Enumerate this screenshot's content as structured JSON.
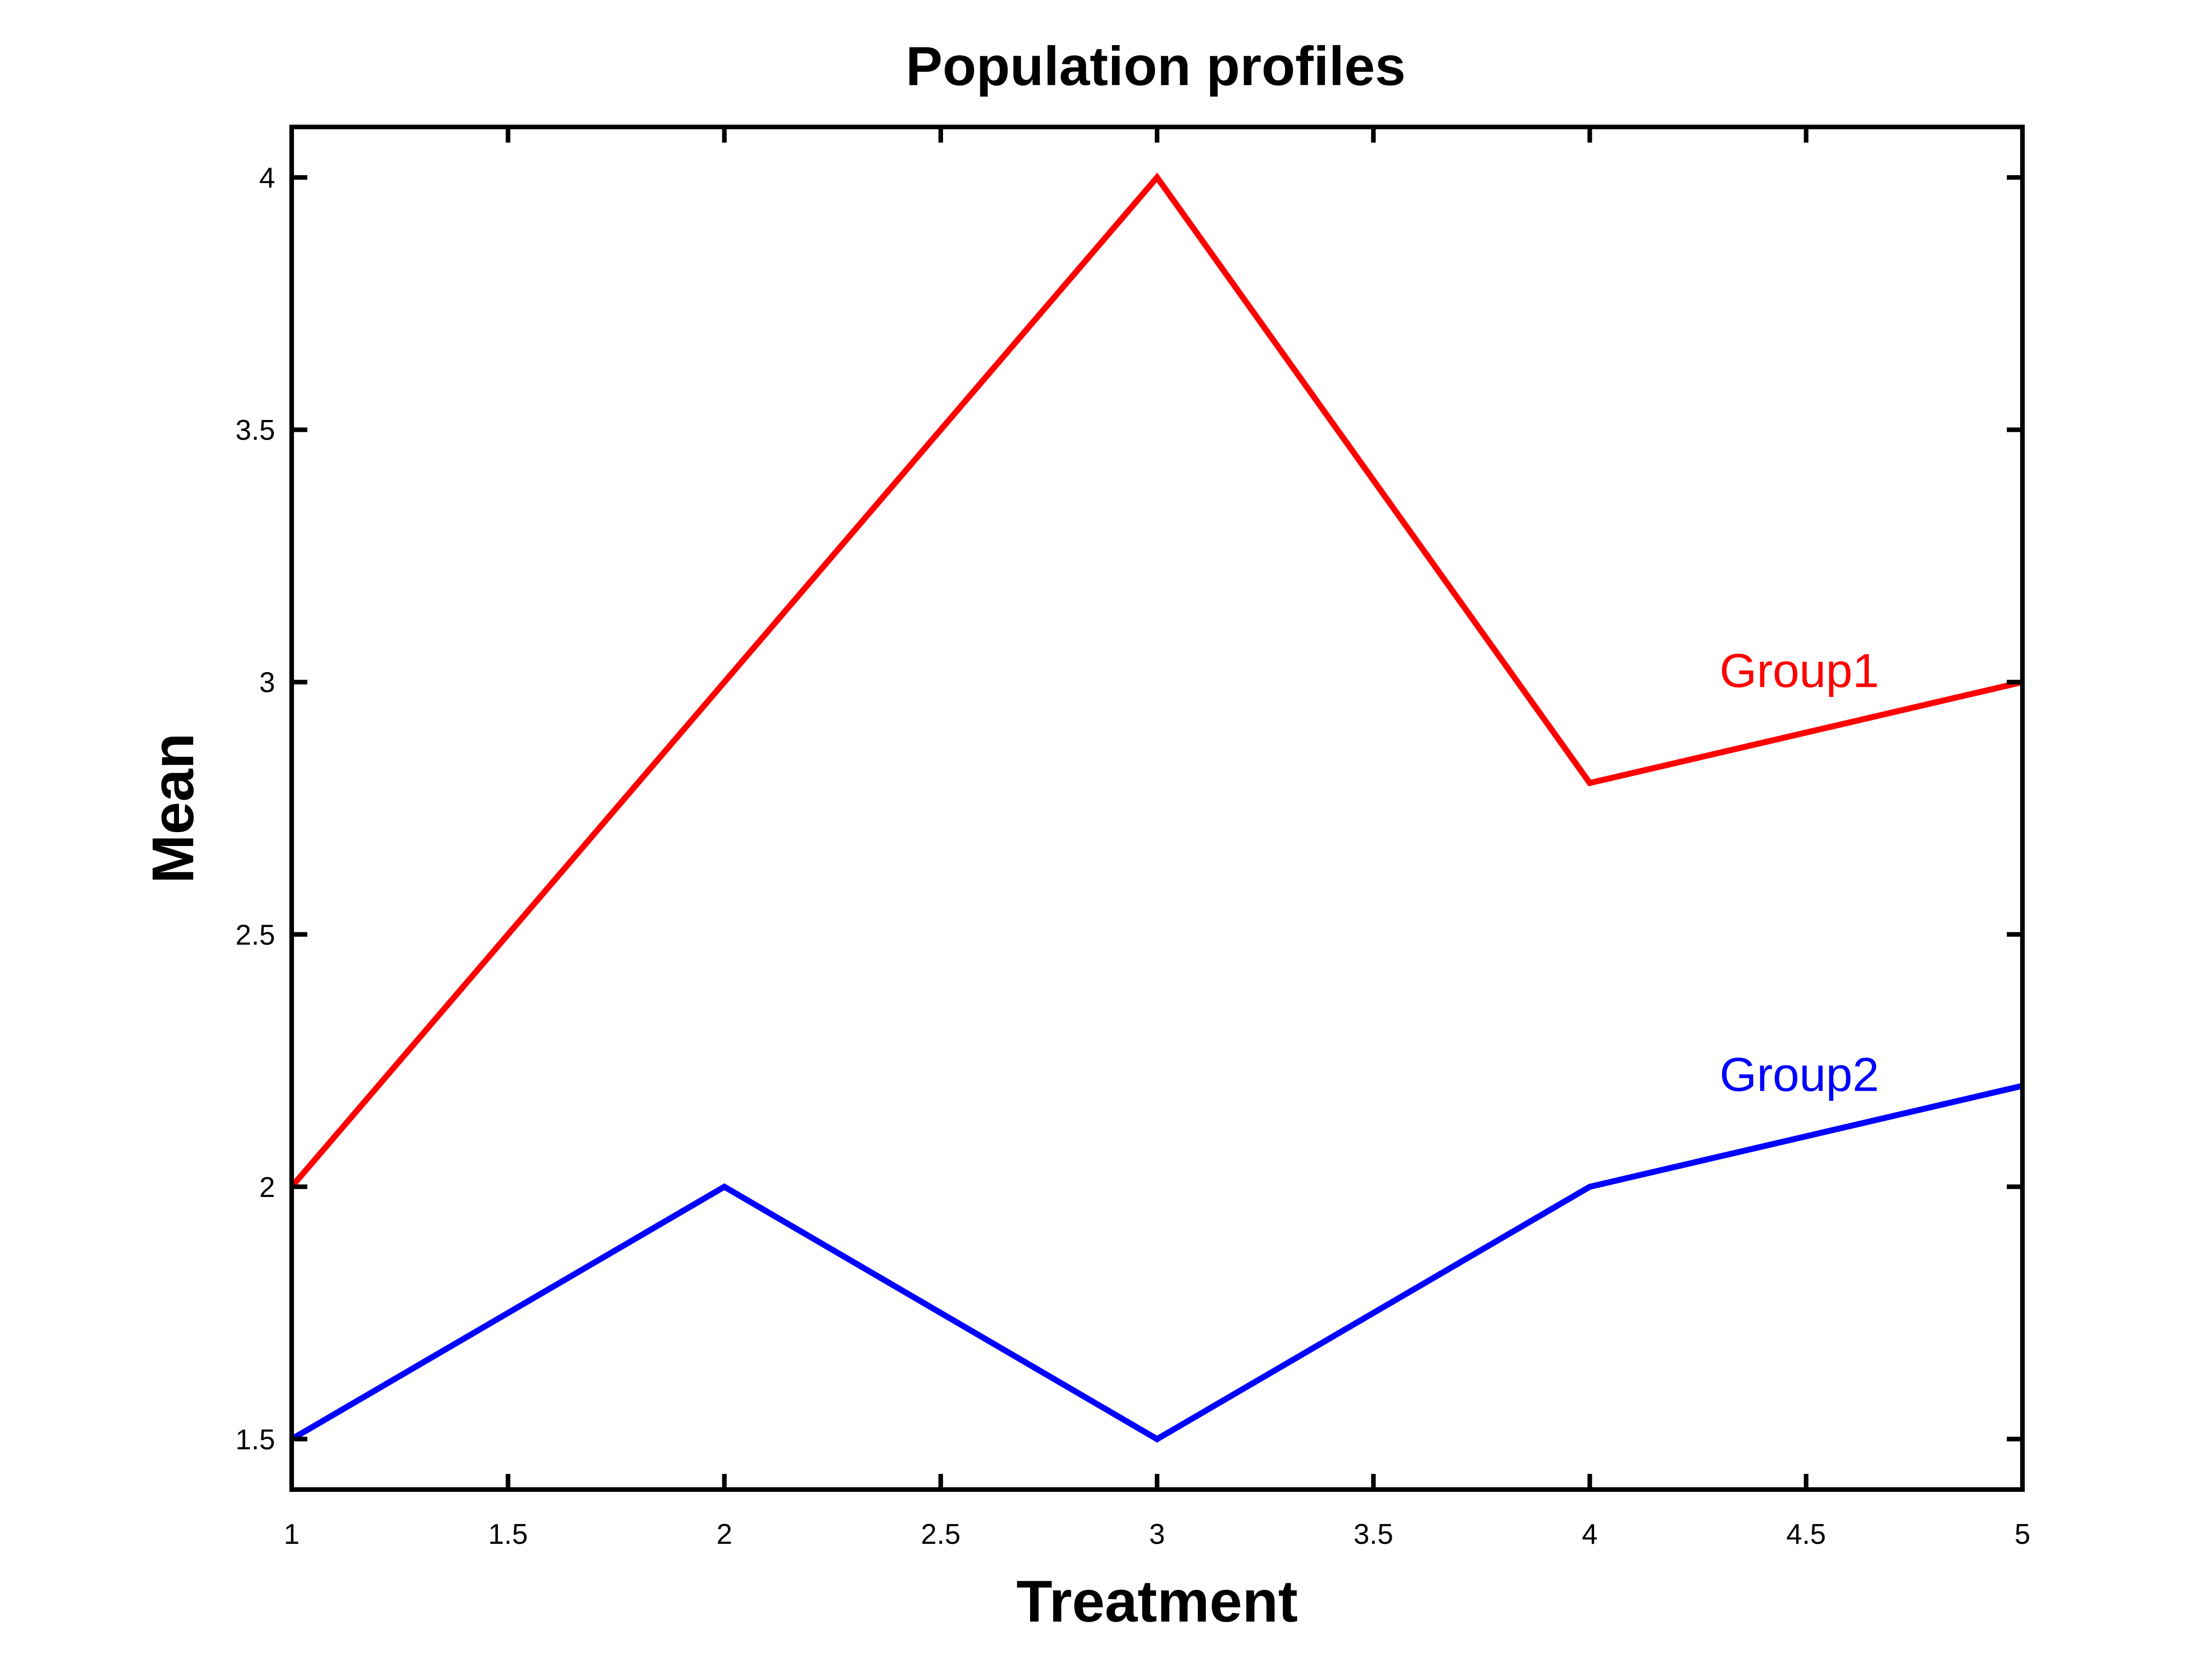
{
  "chart_data": {
    "type": "line",
    "title": "Population profiles",
    "xlabel": "Treatment",
    "ylabel": "Mean",
    "xlim": [
      1,
      5
    ],
    "ylim": [
      1.4,
      4.1
    ],
    "xticks": [
      1,
      1.5,
      2,
      2.5,
      3,
      3.5,
      4,
      4.5,
      5
    ],
    "xtick_labels": [
      "1",
      "1.5",
      "2",
      "2.5",
      "3",
      "3.5",
      "4",
      "4.5",
      "5"
    ],
    "yticks": [
      1.5,
      2,
      2.5,
      3,
      3.5,
      4
    ],
    "ytick_labels": [
      "1.5",
      "2",
      "2.5",
      "3",
      "3.5",
      "4"
    ],
    "grid": false,
    "x": [
      1,
      2,
      3,
      4,
      5
    ],
    "series": [
      {
        "name": "Group1",
        "color": "#ff0000",
        "values": [
          2.0,
          3.0,
          4.0,
          2.8,
          3.0
        ],
        "label_anchor": [
          4.3,
          2.99
        ]
      },
      {
        "name": "Group2",
        "color": "#0000ff",
        "values": [
          1.5,
          2.0,
          1.5,
          2.0,
          2.2
        ],
        "label_anchor": [
          4.3,
          2.19
        ]
      }
    ]
  }
}
